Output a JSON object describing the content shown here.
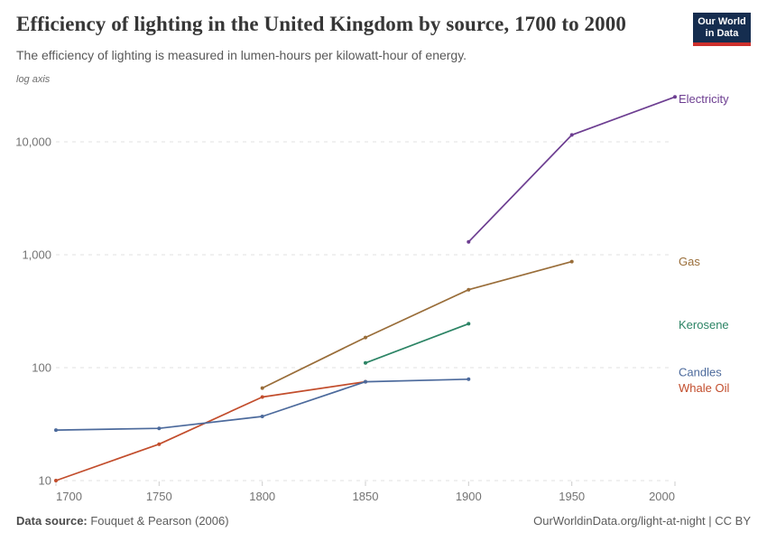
{
  "header": {
    "title": "Efficiency of lighting in the United Kingdom by source, 1700 to 2000",
    "subtitle": "The efficiency of lighting is measured in lumen-hours per kilowatt-hour of energy."
  },
  "logo": {
    "line1": "Our World",
    "line2": "in Data",
    "bg_color": "#152d4f",
    "stripe_color": "#cd302c"
  },
  "chart_data": {
    "type": "line",
    "title": "Efficiency of lighting in the United Kingdom by source, 1700 to 2000",
    "ylabel": "lumen-hours per kilowatt-hour of energy",
    "log_axis_label": "log axis",
    "y_scale": "log10",
    "xlim": [
      1700,
      2000
    ],
    "ylim": [
      10,
      25000
    ],
    "x_ticks": [
      1700,
      1750,
      1800,
      1850,
      1900,
      1950,
      2000
    ],
    "y_ticks": [
      10,
      100,
      1000,
      10000
    ],
    "y_tick_labels": [
      "10",
      "100",
      "1,000",
      "10,000"
    ],
    "grid": "horizontal dashed",
    "legend_position": "right of line ends",
    "series": [
      {
        "name": "Electricity",
        "color": "#6d3e91",
        "label_dy": 2,
        "points": [
          [
            1900,
            1300
          ],
          [
            1950,
            11500
          ],
          [
            2000,
            25000
          ]
        ]
      },
      {
        "name": "Gas",
        "color": "#996d39",
        "label_dy": 0,
        "points": [
          [
            1800,
            66
          ],
          [
            1850,
            185
          ],
          [
            1900,
            490
          ],
          [
            1950,
            870
          ]
        ]
      },
      {
        "name": "Kerosene",
        "color": "#2c8465",
        "label_dy": 1,
        "points": [
          [
            1850,
            110
          ],
          [
            1900,
            245
          ]
        ]
      },
      {
        "name": "Whale Oil",
        "color": "#c24d2c",
        "label_dy": 7,
        "points": [
          [
            1700,
            10
          ],
          [
            1750,
            21
          ],
          [
            1800,
            55
          ],
          [
            1850,
            75
          ]
        ]
      },
      {
        "name": "Candles",
        "color": "#4c6a9c",
        "label_dy": -8,
        "points": [
          [
            1700,
            28
          ],
          [
            1750,
            29
          ],
          [
            1800,
            37
          ],
          [
            1850,
            75
          ],
          [
            1900,
            79
          ]
        ]
      }
    ]
  },
  "footer": {
    "source_label": "Data source:",
    "source_value": " Fouquet & Pearson (2006)",
    "credit": "OurWorldinData.org/light-at-night | CC BY"
  }
}
